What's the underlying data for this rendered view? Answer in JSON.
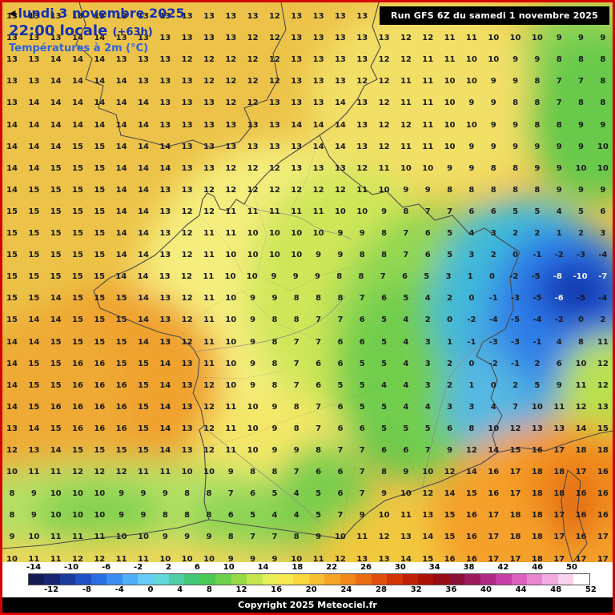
{
  "header": {
    "prev_arrow": "◀",
    "date_line": "lundi 3 novembre 2025",
    "time_line": "22:00 locale",
    "offset": "(+63h)",
    "param_line": "Températures à 2m (°C)",
    "run_box": "Run GFS 6Z du samedi 1 novembre 2025"
  },
  "footer": {
    "copyright": "Copyright 2025 Meteociel.fr"
  },
  "colorbar": {
    "top_labels": [
      "-14",
      "-10",
      "-6",
      "-2",
      "2",
      "6",
      "10",
      "14",
      "18",
      "22",
      "26",
      "30",
      "34",
      "38",
      "42",
      "46",
      "50"
    ],
    "bottom_labels": [
      "-12",
      "-8",
      "-4",
      "0",
      "4",
      "8",
      "12",
      "16",
      "20",
      "24",
      "28",
      "32",
      "36",
      "40",
      "44",
      "48",
      "52"
    ],
    "colors": [
      "#141a52",
      "#18246e",
      "#1b3a9e",
      "#2050c8",
      "#2a6ee4",
      "#3a8ef2",
      "#4fb0f8",
      "#66ccf8",
      "#62d8d8",
      "#4ecfa6",
      "#43c878",
      "#4aca52",
      "#6ed14a",
      "#96da46",
      "#c2e64c",
      "#e8ef58",
      "#f6ea50",
      "#f8d83e",
      "#f7c030",
      "#f5a524",
      "#f18a1a",
      "#ea6c12",
      "#e04e0c",
      "#d23408",
      "#bf2106",
      "#aa1305",
      "#960c14",
      "#8c0f38",
      "#9a1a5c",
      "#b02884",
      "#c83ea6",
      "#dc60be",
      "#ea86d0",
      "#f4abdf",
      "#fbd3ef",
      "#ffffff"
    ]
  },
  "map": {
    "cold_label": "-10",
    "grid_rows": [
      "13 13 13 13 13 12 13 13 13 13 13 13 12 13 13 13 13 13 13 12 12 11 11 11 10 10 10 10",
      "13 13 13 14 14 13 13 13 13 13 13 12 12 13 13 13 13 13 12 12 11 11 10 10 10 9 9 9",
      "13 13 14 14 14 13 13 13 12 12 12 12 12 13 13 13 13 12 12 11 11 10 10 9 9 8 8 8",
      "13 13 14 14 14 14 13 13 13 12 12 12 12 13 13 13 12 12 11 11 10 10 9 9 8 7 7 8",
      "13 14 14 14 14 14 14 13 13 13 12 12 13 13 13 14 13 12 11 11 10 9 9 8 8 7 8 8",
      "14 14 14 14 14 14 14 13 13 13 13 13 13 14 14 14 13 12 12 11 10 10 9 9 8 8 9 9",
      "14 14 14 15 15 14 14 14 13 13 13 13 13 13 14 14 13 12 11 11 10 9 9 9 9 9 9 10",
      "14 14 15 15 15 14 14 14 13 13 12 12 12 13 13 13 12 11 10 10 9 9 8 8 9 9 10 10",
      "14 15 15 15 15 14 14 13 13 12 12 12 12 12 12 12 11 10 9 9 8 8 8 8 8 9 9 9",
      "15 15 15 15 15 14 14 13 12 12 11 11 11 11 11 10 10 9 8 7 7 6 6 5 5 4 5 6",
      "15 15 15 15 15 14 14 13 12 11 11 10 10 10 10 9 9 8 7 6 5 4 3 2 2 1 2 3",
      "15 15 15 15 15 14 14 13 12 11 10 10 10 10 9 9 8 8 7 6 5 3 2 0 -1 -2 -3 -4",
      "15 15 15 15 15 14 14 13 12 11 10 10 9 9 9 8 8 7 6 5 3 1 0 -2 -5 -8 -10 -7",
      "15 15 14 15 15 15 14 13 12 11 10 9 9 8 8 8 7 6 5 4 2 0 -1 -3 -5 -6 -5 -4",
      "15 14 14 15 15 15 14 13 12 11 10 9 8 8 7 7 6 5 4 2 0 -2 -4 -5 -4 -2 0 2",
      "14 14 15 15 15 15 14 13 12 11 10 9 8 7 7 6 6 5 4 3 1 -1 -3 -3 -1 4 8 11",
      "14 15 15 16 16 15 15 14 13 11 10 9 8 7 6 6 5 5 4 3 2 0 -2 -1 2 6 10 12",
      "14 15 15 16 16 16 15 14 13 12 10 9 8 7 6 5 5 4 4 3 2 1 0 2 5 9 11 12",
      "14 15 16 16 16 16 15 14 13 12 11 10 9 8 7 6 5 5 4 4 3 3 4 7 10 11 12 13",
      "13 14 15 16 16 16 15 14 13 12 11 10 9 8 7 6 6 5 5 5 6 8 10 12 13 13 14 15",
      "12 13 14 15 15 15 15 14 13 12 11 10 9 9 8 7 7 6 6 7 9 12 14 15 16 17 18 18",
      "10 11 11 12 12 12 11 11 10 10 9 8 8 7 6 6 7 8 9 10 12 14 16 17 18 18 17 16",
      "8 9 10 10 10 9 9 9 8 8 7 6 5 4 5 6 7 9 10 12 14 15 16 17 18 18 16 16",
      "8 9 10 10 10 9 9 8 8 8 6 5 4 4 5 7 9 10 11 13 15 16 17 18 18 17 16 16",
      "9 10 11 11 11 10 10 9 9 9 8 7 7 8 9 10 11 12 13 14 15 16 17 18 18 17 16 17",
      "10 11 11 12 12 11 11 10 10 10 9 9 9 10 11 12 13 13 14 15 16 16 17 17 18 17 17 17"
    ]
  }
}
